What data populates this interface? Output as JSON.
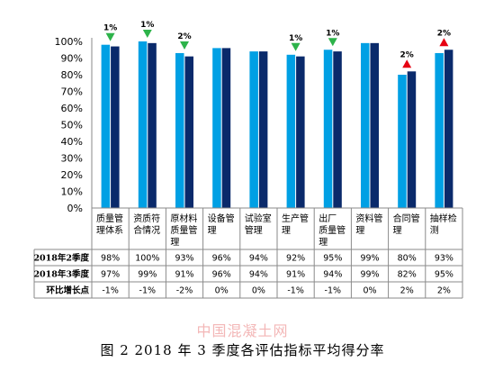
{
  "caption": "图 2 2018 年 3 季度各评估指标平均得分率",
  "watermark": "中国混凝土网",
  "chart_data": {
    "type": "bar",
    "categories": [
      "质量管理体系",
      "资质符合情况",
      "原材料质量管理",
      "设备管理",
      "试验室管理",
      "生产管理",
      "出厂质量管理",
      "资料管理",
      "合同管理",
      "抽样检测"
    ],
    "category_lines": [
      [
        "质量管",
        "理体系"
      ],
      [
        "资质符",
        "合情况"
      ],
      [
        "原材料",
        "质量管",
        "理"
      ],
      [
        "设备管",
        "理"
      ],
      [
        "试验室",
        "管理"
      ],
      [
        "生产管",
        "理"
      ],
      [
        "出厂",
        "质量管",
        "理"
      ],
      [
        "资料管",
        "理"
      ],
      [
        "合同管",
        "理"
      ],
      [
        "抽样检",
        "测"
      ]
    ],
    "series": [
      {
        "name": "2018年2季度",
        "values": [
          98,
          100,
          93,
          96,
          94,
          92,
          95,
          99,
          80,
          93
        ],
        "color": "#00a0e4"
      },
      {
        "name": "2018年3季度",
        "values": [
          97,
          99,
          91,
          96,
          94,
          91,
          94,
          99,
          82,
          95
        ],
        "color": "#0a2a6b"
      }
    ],
    "change_row": {
      "name": "环比增长点",
      "values": [
        "-1%",
        "-1%",
        "-2%",
        "0%",
        "0%",
        "-1%",
        "-1%",
        "0%",
        "2%",
        "2%"
      ]
    },
    "markers": [
      {
        "index": 0,
        "label": "1%",
        "direction": "down"
      },
      {
        "index": 1,
        "label": "1%",
        "direction": "down"
      },
      {
        "index": 2,
        "label": "2%",
        "direction": "down"
      },
      {
        "index": 5,
        "label": "1%",
        "direction": "down"
      },
      {
        "index": 6,
        "label": "1%",
        "direction": "down"
      },
      {
        "index": 8,
        "label": "2%",
        "direction": "up"
      },
      {
        "index": 9,
        "label": "2%",
        "direction": "up"
      }
    ],
    "down_color": "#2db34a",
    "up_color": "#e60012",
    "ylim": [
      0,
      100
    ],
    "yticks": [
      0,
      10,
      20,
      30,
      40,
      50,
      60,
      70,
      80,
      90,
      100
    ],
    "ytick_format": "%",
    "grid": false,
    "legend": "table-below"
  }
}
